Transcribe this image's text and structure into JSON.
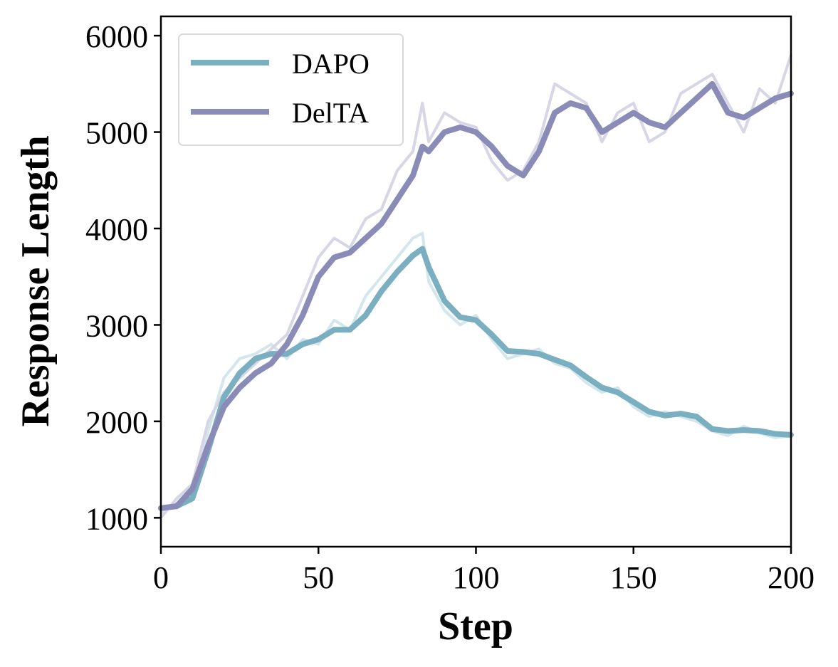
{
  "chart_data": {
    "type": "line",
    "title": "",
    "xlabel": "Step",
    "ylabel": "Response Length",
    "xlim": [
      0,
      200
    ],
    "ylim": [
      700,
      6200
    ],
    "x_ticks": [
      0,
      50,
      100,
      150,
      200
    ],
    "y_ticks": [
      1000,
      2000,
      3000,
      4000,
      5000,
      6000
    ],
    "grid": false,
    "legend_position": "top-left",
    "series": [
      {
        "name": "DAPO",
        "color": "#7aafc1",
        "raw_color": "#d3e6ec",
        "x": [
          0,
          5,
          10,
          15,
          20,
          25,
          30,
          35,
          40,
          45,
          50,
          55,
          60,
          65,
          70,
          75,
          80,
          83,
          85,
          90,
          95,
          100,
          105,
          110,
          115,
          120,
          125,
          130,
          135,
          140,
          145,
          150,
          155,
          160,
          165,
          170,
          175,
          180,
          185,
          190,
          195,
          200
        ],
        "smoothed": [
          1100,
          1120,
          1200,
          1700,
          2250,
          2500,
          2650,
          2700,
          2700,
          2800,
          2850,
          2950,
          2950,
          3100,
          3350,
          3550,
          3720,
          3790,
          3600,
          3250,
          3080,
          3050,
          2900,
          2730,
          2720,
          2700,
          2640,
          2580,
          2460,
          2350,
          2300,
          2200,
          2100,
          2060,
          2080,
          2050,
          1920,
          1900,
          1910,
          1900,
          1870,
          1860
        ],
        "raw": [
          1050,
          1150,
          1250,
          1900,
          2450,
          2650,
          2700,
          2800,
          2650,
          2850,
          2800,
          3050,
          2950,
          3300,
          3500,
          3700,
          3900,
          3950,
          3450,
          3150,
          3000,
          3100,
          2850,
          2650,
          2700,
          2750,
          2600,
          2550,
          2400,
          2300,
          2350,
          2150,
          2050,
          2100,
          2050,
          2000,
          1900,
          1850,
          1950,
          1880,
          1830,
          1850
        ]
      },
      {
        "name": "DelTA",
        "color": "#8a8bb7",
        "raw_color": "#d6d6e6",
        "x": [
          0,
          5,
          10,
          15,
          20,
          25,
          30,
          35,
          40,
          45,
          50,
          55,
          60,
          65,
          70,
          75,
          80,
          83,
          85,
          90,
          95,
          100,
          105,
          110,
          115,
          120,
          125,
          130,
          135,
          140,
          145,
          150,
          155,
          160,
          165,
          170,
          175,
          180,
          185,
          190,
          195,
          200
        ],
        "smoothed": [
          1100,
          1120,
          1300,
          1750,
          2150,
          2350,
          2500,
          2600,
          2800,
          3100,
          3500,
          3700,
          3750,
          3900,
          4050,
          4300,
          4550,
          4850,
          4800,
          5000,
          5050,
          5000,
          4850,
          4650,
          4550,
          4800,
          5200,
          5300,
          5250,
          5000,
          5100,
          5200,
          5100,
          5050,
          5200,
          5350,
          5500,
          5200,
          5150,
          5250,
          5350,
          5400
        ],
        "raw": [
          1000,
          1200,
          1350,
          2000,
          2300,
          2450,
          2600,
          2750,
          2900,
          3300,
          3700,
          3900,
          3800,
          4100,
          4200,
          4600,
          4800,
          5300,
          4900,
          5200,
          5100,
          5050,
          4700,
          4500,
          4600,
          4900,
          5500,
          5400,
          5300,
          4900,
          5200,
          5300,
          4900,
          5000,
          5400,
          5500,
          5600,
          5300,
          5000,
          5450,
          5300,
          5800
        ]
      }
    ]
  }
}
